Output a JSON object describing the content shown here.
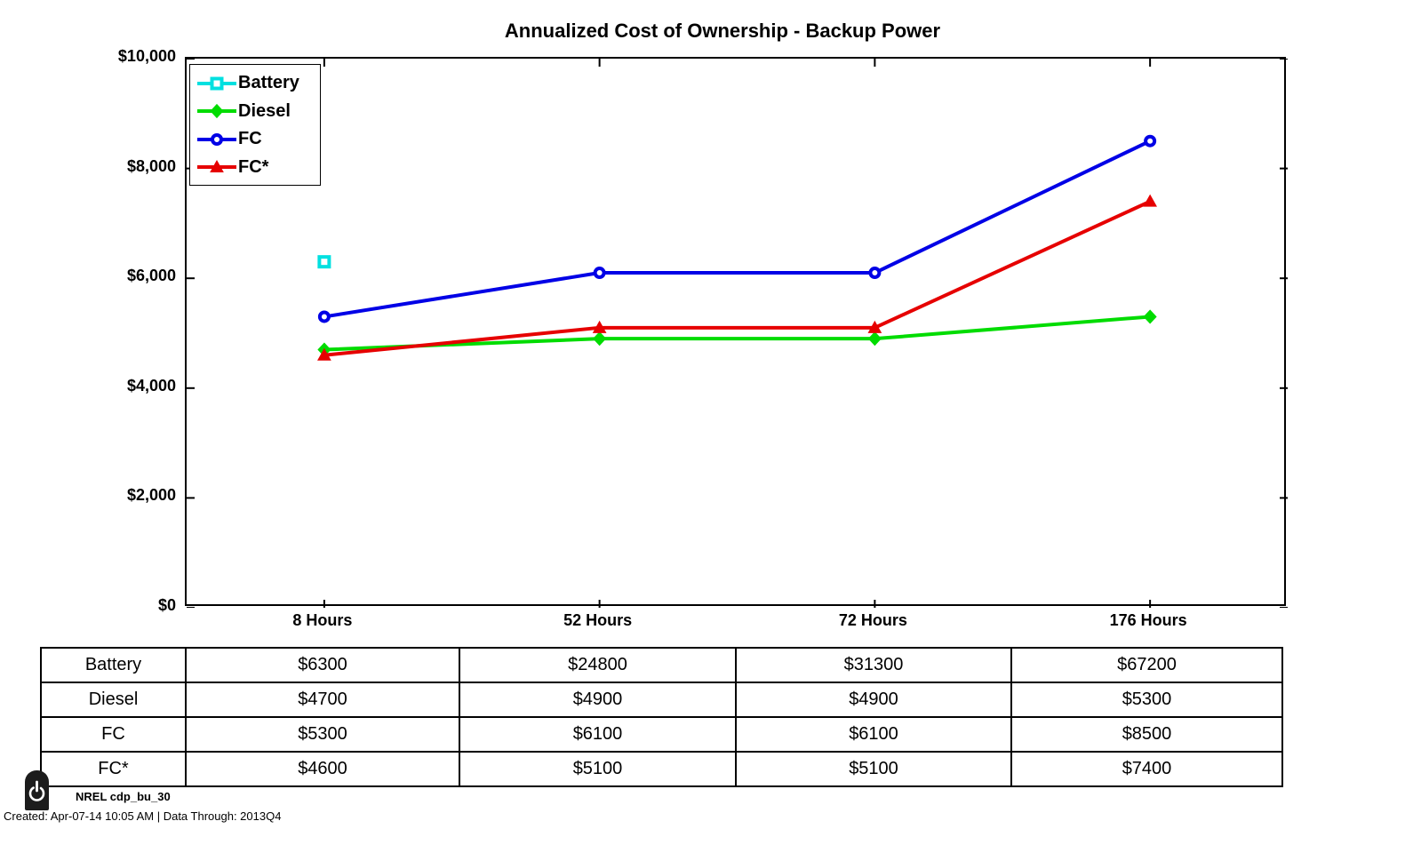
{
  "chart_data": {
    "type": "line",
    "title": "Annualized Cost of Ownership - Backup Power",
    "categories": [
      "8 Hours",
      "52 Hours",
      "72 Hours",
      "176 Hours"
    ],
    "xlabel": "",
    "ylabel": "",
    "ylim": [
      0,
      10000
    ],
    "yticks": [
      0,
      2000,
      4000,
      6000,
      8000,
      10000
    ],
    "ytick_labels": [
      "$0",
      "$2,000",
      "$4,000",
      "$6,000",
      "$8,000",
      "$10,000"
    ],
    "grid": false,
    "legend_position": "top-left",
    "clip_note": "Battery values above $10,000 are off-scale; only its 8 Hours point is visible in the plot",
    "series": [
      {
        "name": "Battery",
        "color": "#00E0E0",
        "marker": "square",
        "values": [
          6300,
          24800,
          31300,
          67200
        ]
      },
      {
        "name": "Diesel",
        "color": "#00DC00",
        "marker": "diamond",
        "values": [
          4700,
          4900,
          4900,
          5300
        ]
      },
      {
        "name": "FC",
        "color": "#0000E6",
        "marker": "circle",
        "values": [
          5300,
          6100,
          6100,
          8500
        ]
      },
      {
        "name": "FC*",
        "color": "#E60000",
        "marker": "triangle",
        "values": [
          4600,
          5100,
          5100,
          7400
        ]
      }
    ]
  },
  "table": {
    "columns": [
      "8 Hours",
      "52 Hours",
      "72 Hours",
      "176 Hours"
    ],
    "rows": [
      {
        "label": "Battery",
        "values": [
          "$6300",
          "$24800",
          "$31300",
          "$67200"
        ]
      },
      {
        "label": "Diesel",
        "values": [
          "$4700",
          "$4900",
          "$4900",
          "$5300"
        ]
      },
      {
        "label": "FC",
        "values": [
          "$5300",
          "$6100",
          "$6100",
          "$8500"
        ]
      },
      {
        "label": "FC*",
        "values": [
          "$4600",
          "$5100",
          "$5100",
          "$7400"
        ]
      }
    ]
  },
  "footer": {
    "source_label": "NREL cdp_bu_30",
    "created_line": "Created: Apr-07-14 10:05 AM | Data Through: 2013Q4"
  }
}
